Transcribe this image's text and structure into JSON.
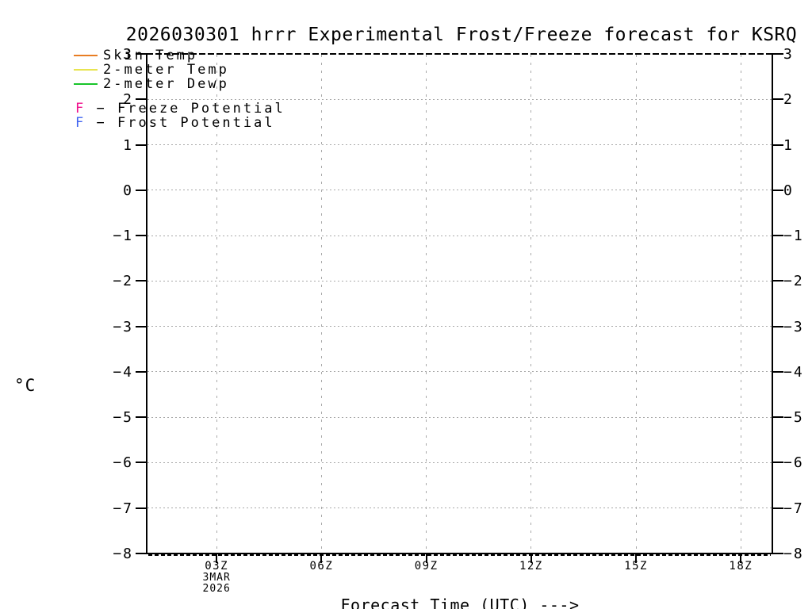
{
  "page": {
    "background": "#ffffff"
  },
  "chart_data": {
    "type": "line",
    "title": "2026030301 hrrr Experimental Frost/Freeze forecast for KSRQ",
    "xlabel": "Forecast Time (UTC) --->",
    "ylabel": "°C",
    "x_axis": {
      "start_hour": 1,
      "end_hour": 18.9,
      "ticks": [
        {
          "hour": 3,
          "label": "03Z",
          "sub": [
            "3MAR",
            "2026"
          ]
        },
        {
          "hour": 6,
          "label": "06Z"
        },
        {
          "hour": 9,
          "label": "09Z"
        },
        {
          "hour": 12,
          "label": "12Z"
        },
        {
          "hour": 15,
          "label": "15Z"
        },
        {
          "hour": 18,
          "label": "18Z"
        }
      ]
    },
    "y_axis": {
      "min": -8,
      "max": 3,
      "step": 1,
      "unit": "°C",
      "labels_both_sides": true,
      "ticks": [
        {
          "value": 3,
          "label": "3"
        },
        {
          "value": 2,
          "label": "2"
        },
        {
          "value": 1,
          "label": "1"
        },
        {
          "value": 0,
          "label": "0"
        },
        {
          "value": -1,
          "label": "−1"
        },
        {
          "value": -2,
          "label": "−2"
        },
        {
          "value": -3,
          "label": "−3"
        },
        {
          "value": -4,
          "label": "−4"
        },
        {
          "value": -5,
          "label": "−5"
        },
        {
          "value": -6,
          "label": "−6"
        },
        {
          "value": -7,
          "label": "−7"
        },
        {
          "value": -8,
          "label": "−8"
        }
      ]
    },
    "grid": {
      "color": "#a9a9a9",
      "style": "dotted",
      "frame_top_style": "dashed",
      "frame_bottom_extra_dashed": true
    },
    "series": [
      {
        "name": "Skin Temp",
        "color": "#e87d23",
        "style": "line",
        "points": []
      },
      {
        "name": "2-meter Temp",
        "color": "#e8e450",
        "style": "line",
        "points": []
      },
      {
        "name": "2-meter Dewp",
        "color": "#18c42a",
        "style": "line",
        "points": []
      }
    ],
    "markers": [
      {
        "symbol": "F",
        "color": "#f0108c",
        "label": "Freeze Potential",
        "points": []
      },
      {
        "symbol": "F",
        "color": "#4064f0",
        "label": "Frost Potential",
        "points": []
      }
    ],
    "no_data_plotted": true
  },
  "legend": {
    "separator": "−"
  }
}
